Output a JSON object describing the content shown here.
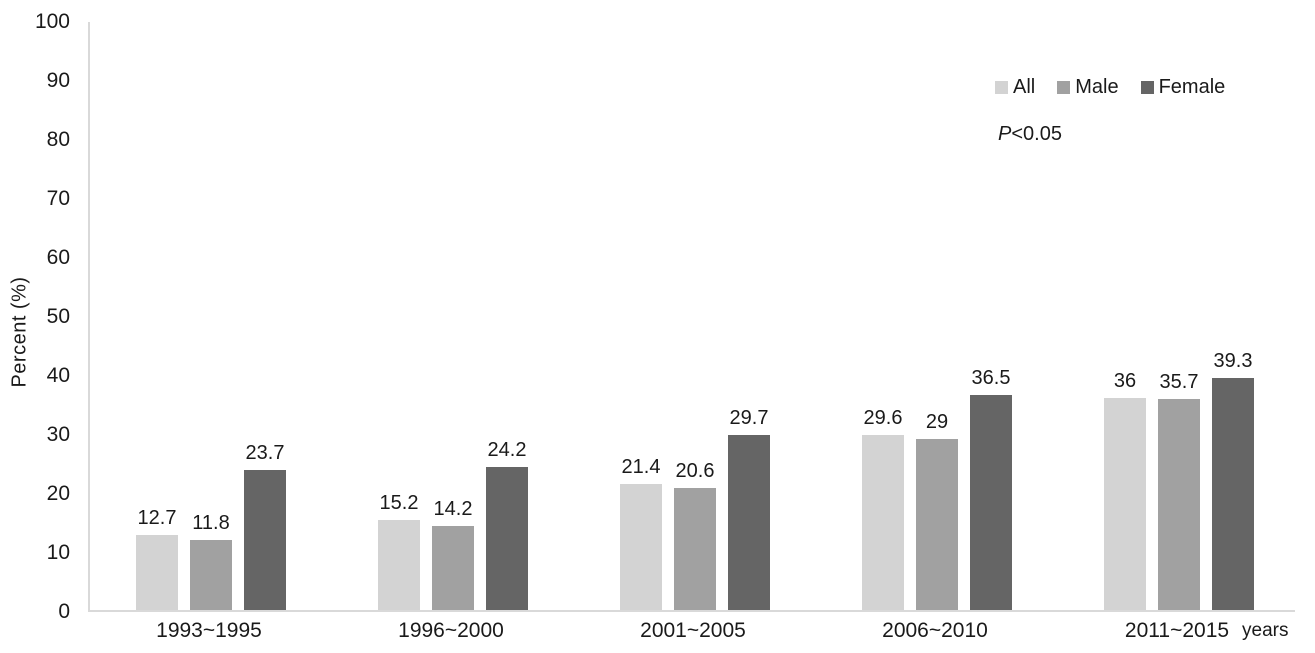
{
  "chart_data": {
    "type": "bar",
    "title": "",
    "categories": [
      "1993~1995",
      "1996~2000",
      "2001~2005",
      "2006~2010",
      "2011~2015"
    ],
    "series": [
      {
        "name": "All",
        "color": "#d3d3d3",
        "values": [
          12.7,
          15.2,
          21.4,
          29.6,
          36
        ]
      },
      {
        "name": "Male",
        "color": "#a1a1a1",
        "values": [
          11.8,
          14.2,
          20.6,
          29,
          35.7
        ]
      },
      {
        "name": "Female",
        "color": "#656565",
        "values": [
          23.7,
          24.2,
          29.7,
          36.5,
          39.3
        ]
      }
    ],
    "xlabel": "years",
    "ylabel": "Percent (%)",
    "ylim": [
      0,
      100
    ],
    "yticks": [
      0,
      10,
      20,
      30,
      40,
      50,
      60,
      70,
      80,
      90,
      100
    ],
    "grid": false,
    "legend_position": "top-right",
    "annotation": {
      "prefix": "P",
      "rest": "<0.05"
    }
  },
  "colors": {
    "axis": "#d9d9d9",
    "text": "#1a1a1a",
    "background": "#ffffff"
  }
}
